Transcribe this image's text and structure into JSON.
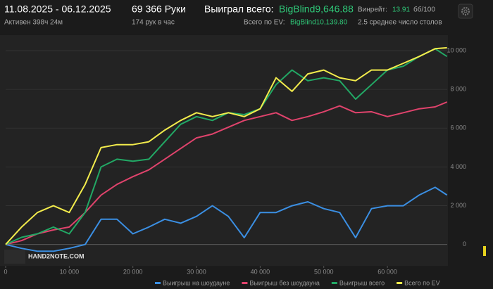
{
  "header": {
    "dates": "11.08.2025 - 06.12.2025",
    "active": "Активен 398ч 24м",
    "hands": "69 366 Руки",
    "hands_per_hour": "174 рук в час",
    "won_label": "Выиграл всего:",
    "won_value": "BigBlind9,646.88",
    "winrate_label": "Винрейт:",
    "winrate_value": "13.91",
    "winrate_unit": "бб/100",
    "ev_label": "Всего по EV:",
    "ev_value": "BigBlind10,139.80",
    "tables": "2.5 среднее число столов"
  },
  "chart_data": {
    "type": "line",
    "watermark": "HAND2NOTE.COM",
    "x": [
      0,
      2500,
      5000,
      7500,
      10000,
      12500,
      15000,
      17500,
      20000,
      22500,
      25000,
      27500,
      30000,
      32500,
      35000,
      37500,
      40000,
      42500,
      45000,
      47500,
      50000,
      52500,
      55000,
      57500,
      60000,
      62500,
      65000,
      67500,
      69366
    ],
    "series": [
      {
        "name": "Выигрыш на шоудауне",
        "color": "#3b8fe3",
        "values": [
          0,
          -200,
          -350,
          -350,
          -200,
          0,
          1300,
          1300,
          550,
          900,
          1300,
          1100,
          1450,
          2000,
          1450,
          350,
          1650,
          1650,
          2000,
          2200,
          1850,
          1650,
          350,
          1850,
          2000,
          2000,
          2550,
          2950,
          2550
        ]
      },
      {
        "name": "Выигрыш без шоудауна",
        "color": "#e0436c",
        "values": [
          0,
          200,
          550,
          750,
          900,
          1650,
          2550,
          3100,
          3500,
          3850,
          4400,
          4950,
          5500,
          5700,
          6050,
          6400,
          6600,
          6800,
          6400,
          6600,
          6850,
          7150,
          6800,
          6850,
          6600,
          6800,
          7000,
          7100,
          7350
        ]
      },
      {
        "name": "Выигрыш всего",
        "color": "#22a865",
        "values": [
          0,
          370,
          550,
          900,
          550,
          1650,
          4000,
          4400,
          4300,
          4400,
          5300,
          6200,
          6600,
          6400,
          6800,
          6700,
          7000,
          8250,
          9000,
          8450,
          8600,
          8450,
          7500,
          8250,
          9000,
          9200,
          9700,
          10100,
          9700
        ]
      },
      {
        "name": "Всего по EV",
        "color": "#f3ec4c",
        "values": [
          0,
          900,
          1650,
          2000,
          1650,
          3100,
          5000,
          5150,
          5150,
          5300,
          5900,
          6400,
          6800,
          6600,
          6800,
          6600,
          7000,
          8600,
          7900,
          8800,
          9000,
          8600,
          8450,
          9000,
          9000,
          9350,
          9700,
          10100,
          10150
        ]
      }
    ],
    "xlim": [
      0,
      69400
    ],
    "xticks": [
      0,
      {
        "value": 10000,
        "label": "10 000"
      },
      {
        "value": 20000,
        "label": "20 000"
      },
      {
        "value": 30000,
        "label": "30 000"
      },
      {
        "value": 40000,
        "label": "40 000"
      },
      {
        "value": 50000,
        "label": "50 000"
      },
      {
        "value": 60000,
        "label": "60 000"
      }
    ],
    "ylim": [
      -1100,
      10800
    ],
    "yticks": [
      0,
      {
        "value": 2000,
        "label": "2 000"
      },
      {
        "value": 4000,
        "label": "4 000"
      },
      {
        "value": 6000,
        "label": "6 000"
      },
      {
        "value": 8000,
        "label": "8 000"
      },
      {
        "value": 10000,
        "label": "10 000"
      }
    ],
    "grid": true,
    "legend": "bottom"
  }
}
